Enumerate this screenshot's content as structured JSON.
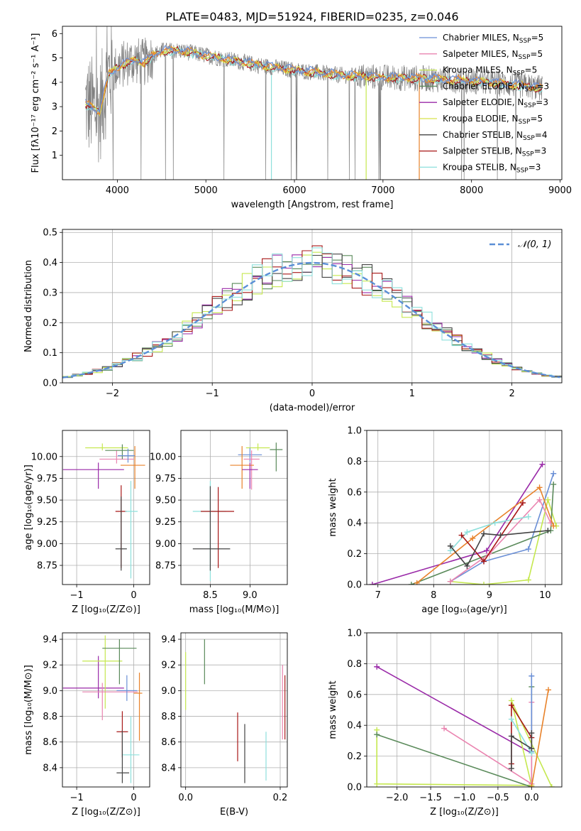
{
  "figure_title": "PLATE=0483, MJD=51924, FIBERID=0235, z=0.046",
  "colors": {
    "Chabrier MILES": "#6a8fd6",
    "Salpeter MILES": "#ea84b0",
    "Kroupa MILES": "#c5e84f",
    "Chabrier ELODIE": "#5a8a5a",
    "Salpeter ELODIE": "#9a2aa8",
    "Kroupa ELODIE": "#d8e24a",
    "Chabrier STELIB": "#444444",
    "Salpeter STELIB": "#a81818",
    "Kroupa STELIB": "#8ee0dc",
    "extra_orange": "#e8822a",
    "data_gray": "#808080"
  },
  "chart_data": [
    {
      "id": "spectrum",
      "type": "line",
      "xlabel": "wavelength [Angstrom, rest frame]",
      "ylabel": "Flux [fλ10⁻¹⁷ erg cm⁻² s⁻¹ A⁻¹]",
      "xlim": [
        3380,
        9020
      ],
      "ylim": [
        0,
        6.3
      ],
      "xticks": [
        4000,
        5000,
        6000,
        7000,
        8000,
        9000
      ],
      "yticks": [
        1,
        2,
        3,
        4,
        5,
        6
      ],
      "legend_position": "top-right",
      "legend": [
        {
          "name": "Chabrier MILES",
          "nssp": "5",
          "color": "#6a8fd6"
        },
        {
          "name": "Salpeter MILES",
          "nssp": "5",
          "color": "#ea84b0"
        },
        {
          "name": "Kroupa MILES",
          "nssp": "5",
          "color": "#c5e84f"
        },
        {
          "name": "Chabrier ELODIE",
          "nssp": "3",
          "color": "#5a8a5a"
        },
        {
          "name": "Salpeter ELODIE",
          "nssp": "3",
          "color": "#9a2aa8"
        },
        {
          "name": "Kroupa ELODIE",
          "nssp": "5",
          "color": "#d8e24a"
        },
        {
          "name": "Chabrier STELIB",
          "nssp": "4",
          "color": "#444444"
        },
        {
          "name": "Salpeter STELIB",
          "nssp": "3",
          "color": "#a81818"
        },
        {
          "name": "Kroupa STELIB",
          "nssp": "3",
          "color": "#8ee0dc"
        }
      ],
      "continuum": {
        "x": [
          3640,
          3700,
          3800,
          3900,
          4000,
          4100,
          4200,
          4300,
          4400,
          4500,
          4700,
          5000,
          5300,
          5600,
          6000,
          6500,
          7000,
          7500,
          8000,
          8500,
          8800
        ],
        "y": [
          3.1,
          3.0,
          2.8,
          4.3,
          4.6,
          4.8,
          4.9,
          4.8,
          5.1,
          5.3,
          5.3,
          5.1,
          4.9,
          4.7,
          4.5,
          4.3,
          4.2,
          4.15,
          4.05,
          3.9,
          3.75
        ]
      }
    },
    {
      "id": "residuals",
      "type": "line",
      "xlabel": "(data-model)/error",
      "ylabel": "Normed distribution",
      "xlim": [
        -2.5,
        2.5
      ],
      "ylim": [
        0,
        0.51
      ],
      "xticks": [
        -2,
        -1,
        0,
        1,
        2
      ],
      "yticks": [
        0.0,
        0.1,
        0.2,
        0.3,
        0.4,
        0.5
      ],
      "legend": [
        {
          "name": "𝒩(0, 1)",
          "color": "#5b8fd6"
        }
      ],
      "legend_position": "top-right",
      "bin_width": 0.1
    },
    {
      "id": "age_vs_Z",
      "type": "scatter",
      "xlabel": "Z [log₁₀(Z/Z⊙)]",
      "ylabel": "age  [log₁₀(age/yr)]",
      "xlim": [
        -1.25,
        0.28
      ],
      "ylim": [
        8.53,
        10.3
      ],
      "xticks": [
        -1,
        0
      ],
      "yticks": [
        8.75,
        9.0,
        9.25,
        9.5,
        9.75,
        10.0
      ],
      "points": [
        {
          "series": "Salpeter ELODIE",
          "x": -0.62,
          "y": 9.85,
          "xerr": [
            0.62,
            0.45
          ],
          "yerr": [
            0.22,
            0.08
          ]
        },
        {
          "series": "Kroupa MILES",
          "x": -0.55,
          "y": 10.1,
          "xerr": [
            0.3,
            0.45
          ],
          "yerr": [
            0.03,
            0.05
          ]
        },
        {
          "series": "Salpeter MILES",
          "x": -0.3,
          "y": 9.97,
          "xerr": [
            0.3,
            0.3
          ],
          "yerr": [
            0.05,
            0.1
          ]
        },
        {
          "series": "Chabrier ELODIE",
          "x": -0.2,
          "y": 10.07,
          "xerr": [
            0.3,
            0.2
          ],
          "yerr": [
            0.1,
            0.07
          ]
        },
        {
          "series": "extra_orange",
          "x": 0.02,
          "y": 9.9,
          "xerr": [
            0.25,
            0.18
          ],
          "yerr": [
            0.27,
            0.22
          ]
        },
        {
          "series": "Chabrier MILES",
          "x": -0.1,
          "y": 10.01,
          "xerr": [
            0.18,
            0.12
          ],
          "yerr": [
            0.08,
            0.08
          ]
        },
        {
          "series": "Salpeter STELIB",
          "x": -0.22,
          "y": 9.37,
          "xerr": [
            0.1,
            0.1
          ],
          "yerr": [
            0.65,
            0.3
          ]
        },
        {
          "series": "Chabrier STELIB",
          "x": -0.22,
          "y": 8.94,
          "xerr": [
            0.1,
            0.1
          ],
          "yerr": [
            0.25,
            0.6
          ]
        },
        {
          "series": "Kroupa STELIB",
          "x": -0.05,
          "y": 9.37,
          "xerr": [
            0.1,
            0.12
          ],
          "yerr": [
            0.77,
            0.35
          ]
        }
      ]
    },
    {
      "id": "age_vs_mass",
      "type": "scatter",
      "xlabel": "mass [log₁₀(M/M⊙)]",
      "ylabel": "",
      "xlim": [
        8.13,
        9.47
      ],
      "ylim": [
        8.53,
        10.3
      ],
      "xticks": [
        8.5,
        9.0
      ],
      "yticks": [
        8.75,
        9.0,
        9.25,
        9.5,
        9.75,
        10.0
      ],
      "points": [
        {
          "series": "Kroupa MILES",
          "x": 9.1,
          "y": 10.1,
          "xerr": [
            0.15,
            0.15
          ],
          "yerr": [
            0.03,
            0.05
          ]
        },
        {
          "series": "Chabrier ELODIE",
          "x": 9.33,
          "y": 10.08,
          "xerr": [
            0.08,
            0.08
          ],
          "yerr": [
            0.25,
            0.08
          ]
        },
        {
          "series": "Chabrier MILES",
          "x": 9.0,
          "y": 10.02,
          "xerr": [
            0.15,
            0.15
          ],
          "yerr": [
            0.08,
            0.08
          ]
        },
        {
          "series": "Salpeter MILES",
          "x": 9.02,
          "y": 9.97,
          "xerr": [
            0.1,
            0.1
          ],
          "yerr": [
            0.35,
            0.1
          ]
        },
        {
          "series": "extra_orange",
          "x": 8.9,
          "y": 9.9,
          "xerr": [
            0.15,
            0.15
          ],
          "yerr": [
            0.27,
            0.22
          ]
        },
        {
          "series": "Salpeter ELODIE",
          "x": 9.0,
          "y": 9.85,
          "xerr": [
            0.1,
            0.1
          ],
          "yerr": [
            0.22,
            0.08
          ]
        },
        {
          "series": "Kroupa STELIB",
          "x": 8.5,
          "y": 9.37,
          "xerr": [
            0.22,
            0.2
          ],
          "yerr": [
            0.8,
            0.35
          ]
        },
        {
          "series": "Salpeter STELIB",
          "x": 8.6,
          "y": 9.37,
          "xerr": [
            0.22,
            0.2
          ],
          "yerr": [
            0.65,
            0.28
          ]
        },
        {
          "series": "Chabrier STELIB",
          "x": 8.5,
          "y": 8.94,
          "xerr": [
            0.22,
            0.25
          ],
          "yerr": [
            0.25,
            0.72
          ]
        }
      ]
    },
    {
      "id": "mass_weight_vs_age",
      "type": "line",
      "xlabel": "age  [log₁₀(age/yr)]",
      "ylabel": "mass weight",
      "xlim": [
        6.8,
        10.3
      ],
      "ylim": [
        0,
        1.0
      ],
      "xticks": [
        7,
        8,
        9,
        10
      ],
      "yticks": [
        0.0,
        0.2,
        0.4,
        0.6,
        0.8,
        1.0
      ],
      "series": [
        {
          "name": "Salpeter ELODIE",
          "x": [
            6.9,
            8.95,
            9.95
          ],
          "y": [
            0.0,
            0.22,
            0.78
          ]
        },
        {
          "name": "Chabrier MILES",
          "x": [
            8.3,
            8.9,
            9.7,
            10.15
          ],
          "y": [
            0.02,
            0.15,
            0.23,
            0.72
          ]
        },
        {
          "name": "Kroupa MILES",
          "x": [
            8.3,
            8.9,
            9.7,
            10.05,
            10.2
          ],
          "y": [
            0.02,
            0.0,
            0.03,
            0.55,
            0.38
          ]
        },
        {
          "name": "Chabrier ELODIE",
          "x": [
            7.6,
            10.1,
            10.15
          ],
          "y": [
            0.0,
            0.35,
            0.65
          ]
        },
        {
          "name": "Salpeter MILES",
          "x": [
            8.3,
            9.0,
            9.9,
            10.1
          ],
          "y": [
            0.02,
            0.2,
            0.55,
            0.4
          ]
        },
        {
          "name": "extra_orange",
          "x": [
            7.7,
            8.7,
            9.9,
            10.15
          ],
          "y": [
            0.01,
            0.3,
            0.63,
            0.38
          ]
        },
        {
          "name": "Kroupa STELIB",
          "x": [
            8.3,
            8.6,
            9.1,
            9.7
          ],
          "y": [
            0.22,
            0.34,
            0.4,
            0.44
          ]
        },
        {
          "name": "Salpeter STELIB",
          "x": [
            8.5,
            8.9,
            9.6
          ],
          "y": [
            0.32,
            0.15,
            0.53
          ]
        },
        {
          "name": "Chabrier STELIB",
          "x": [
            8.3,
            8.6,
            8.9,
            9.2,
            10.05
          ],
          "y": [
            0.25,
            0.12,
            0.33,
            0.32,
            0.35
          ]
        }
      ]
    },
    {
      "id": "mass_vs_Z",
      "type": "scatter",
      "xlabel": "Z [log₁₀(Z/Z⊙)]",
      "ylabel": "mass [log₁₀(M/M⊙)]",
      "xlim": [
        -1.25,
        0.28
      ],
      "ylim": [
        8.25,
        9.45
      ],
      "xticks": [
        -1,
        0
      ],
      "yticks": [
        8.4,
        8.6,
        8.8,
        9.0,
        9.2,
        9.4
      ],
      "points": [
        {
          "series": "Salpeter ELODIE",
          "x": -0.62,
          "y": 9.02,
          "xerr": [
            0.62,
            0.45
          ],
          "yerr": [
            0.08,
            0.25
          ]
        },
        {
          "series": "Kroupa MILES",
          "x": -0.5,
          "y": 9.23,
          "xerr": [
            0.4,
            0.3
          ],
          "yerr": [
            0.37,
            0.2
          ]
        },
        {
          "series": "Chabrier ELODIE",
          "x": -0.25,
          "y": 9.33,
          "xerr": [
            0.3,
            0.3
          ],
          "yerr": [
            0.28,
            0.07
          ]
        },
        {
          "series": "Salpeter MILES",
          "x": -0.55,
          "y": 8.99,
          "xerr": [
            0.35,
            0.62
          ],
          "yerr": [
            0.22,
            0.07
          ]
        },
        {
          "series": "extra_orange",
          "x": 0.1,
          "y": 8.98,
          "xerr": [
            0.1,
            0.05
          ],
          "yerr": [
            0.37,
            0.16
          ]
        },
        {
          "series": "Chabrier MILES",
          "x": -0.12,
          "y": 9.0,
          "xerr": [
            0.18,
            0.18
          ],
          "yerr": [
            0.08,
            0.12
          ]
        },
        {
          "series": "Salpeter STELIB",
          "x": -0.2,
          "y": 8.68,
          "xerr": [
            0.1,
            0.1
          ],
          "yerr": [
            0.2,
            0.16
          ]
        },
        {
          "series": "Kroupa STELIB",
          "x": -0.05,
          "y": 8.5,
          "xerr": [
            0.15,
            0.15
          ],
          "yerr": [
            0.22,
            0.3
          ]
        },
        {
          "series": "Chabrier STELIB",
          "x": -0.2,
          "y": 8.36,
          "xerr": [
            0.1,
            0.12
          ],
          "yerr": [
            0.08,
            0.33
          ]
        }
      ]
    },
    {
      "id": "mass_vs_ebv",
      "type": "scatter",
      "xlabel": "E(B-V)",
      "ylabel": "",
      "xlim": [
        -0.01,
        0.215
      ],
      "ylim": [
        8.25,
        9.45
      ],
      "xticks": [
        0.0,
        0.2
      ],
      "yticks": [
        8.4,
        8.6,
        8.8,
        9.0,
        9.2,
        9.4
      ],
      "points": [
        {
          "series": "Kroupa MILES",
          "x": 0.0,
          "y": 9.1,
          "yerr": [
            0.25,
            0.2
          ]
        },
        {
          "series": "Chabrier ELODIE",
          "x": 0.04,
          "y": 9.2,
          "yerr": [
            0.15,
            0.2
          ]
        },
        {
          "series": "Salpeter STELIB",
          "x": 0.11,
          "y": 8.65,
          "yerr": [
            0.2,
            0.18
          ]
        },
        {
          "series": "Chabrier STELIB",
          "x": 0.125,
          "y": 8.5,
          "yerr": [
            0.22,
            0.24
          ]
        },
        {
          "series": "Kroupa STELIB",
          "x": 0.17,
          "y": 8.48,
          "yerr": [
            0.18,
            0.2
          ]
        },
        {
          "series": "Salpeter MILES",
          "x": 0.205,
          "y": 8.9,
          "yerr": [
            0.28,
            0.3
          ]
        },
        {
          "series": "Salpeter STELIB",
          "x": 0.21,
          "y": 8.9,
          "yerr": [
            0.28,
            0.22
          ]
        }
      ]
    },
    {
      "id": "mass_weight_vs_Z",
      "type": "line",
      "xlabel": "Z [log₁₀(Z/Z⊙)]",
      "ylabel": "mass weight",
      "xlim": [
        -2.45,
        0.45
      ],
      "ylim": [
        0,
        1.0
      ],
      "xticks": [
        -2.0,
        -1.5,
        -1.0,
        -0.5,
        0.0
      ],
      "yticks": [
        0.0,
        0.2,
        0.4,
        0.6,
        0.8,
        1.0
      ],
      "series": [
        {
          "name": "Salpeter ELODIE",
          "x": [
            -2.3,
            0.0
          ],
          "y": [
            0.78,
            0.22
          ]
        },
        {
          "name": "Kroupa MILES",
          "x": [
            -2.3,
            -2.3,
            0.0,
            -0.3,
            0.3
          ],
          "y": [
            0.37,
            0.02,
            0.01,
            0.56,
            0.0
          ]
        },
        {
          "name": "Chabrier ELODIE",
          "x": [
            -2.3,
            0.0,
            0.0
          ],
          "y": [
            0.34,
            0.0,
            0.65
          ]
        },
        {
          "name": "Salpeter MILES",
          "x": [
            -1.3,
            0.0,
            0.0
          ],
          "y": [
            0.38,
            0.02,
            0.55
          ]
        },
        {
          "name": "extra_orange",
          "x": [
            0.0,
            0.25
          ],
          "y": [
            0.0,
            0.63
          ]
        },
        {
          "name": "Chabrier MILES",
          "x": [
            0.0,
            0.0
          ],
          "y": [
            0.23,
            0.72
          ]
        },
        {
          "name": "Salpeter STELIB",
          "x": [
            -0.3,
            -0.3,
            0.0
          ],
          "y": [
            0.15,
            0.53,
            0.32
          ]
        },
        {
          "name": "Kroupa STELIB",
          "x": [
            -0.3,
            0.0
          ],
          "y": [
            0.44,
            0.22
          ]
        },
        {
          "name": "Chabrier STELIB",
          "x": [
            -0.3,
            -0.3,
            0.0,
            0.0
          ],
          "y": [
            0.12,
            0.33,
            0.25,
            0.35
          ]
        }
      ]
    }
  ]
}
